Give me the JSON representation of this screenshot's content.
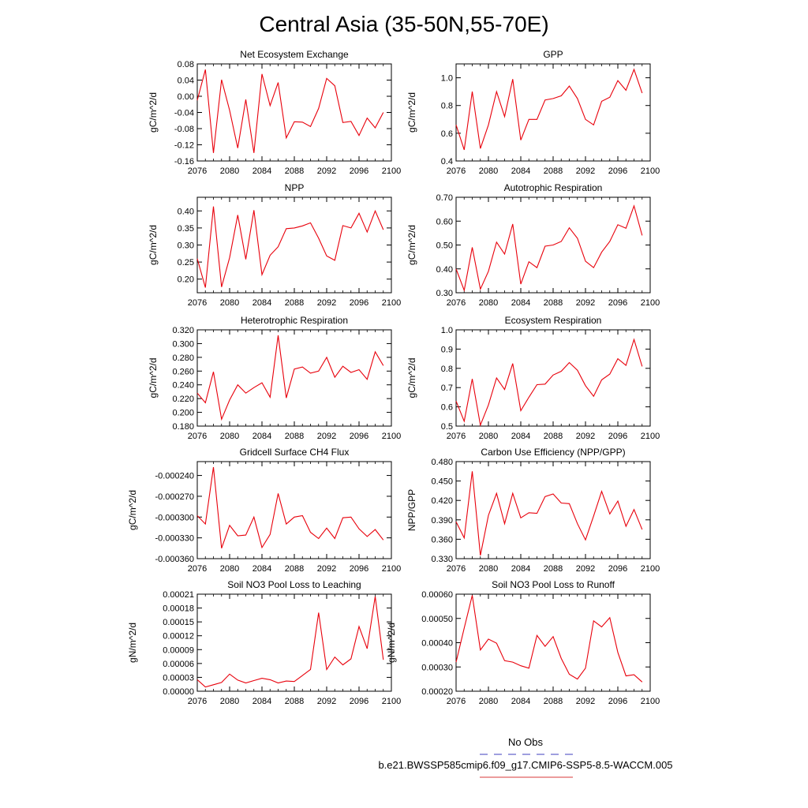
{
  "figure": {
    "title": "Central Asia (35-50N,55-70E)",
    "legend": {
      "entries": [
        {
          "label": "No Obs",
          "color": "#6666cc",
          "style": "dashed"
        },
        {
          "label": "b.e21.BWSSP585cmip6.f09_g17.CMIP6-SSP5-8.5-WACCM.005",
          "color": "#e06060",
          "style": "solid"
        }
      ]
    },
    "series_color": "#e8000b"
  },
  "chart_data": [
    {
      "type": "line",
      "title": "Net Ecosystem Exchange",
      "ylabel": "gC/m^2/d",
      "xlim": [
        2076,
        2100
      ],
      "ylim": [
        -0.16,
        0.08
      ],
      "xticks": [
        "2076",
        "2080",
        "2084",
        "2088",
        "2092",
        "2096",
        "2100"
      ],
      "yticks": [
        "-0.16",
        "-0.12",
        "-0.08",
        "-0.04",
        "0.00",
        "0.04",
        "0.08"
      ],
      "x": [
        2076,
        2077,
        2078,
        2079,
        2080,
        2081,
        2082,
        2083,
        2084,
        2085,
        2086,
        2087,
        2088,
        2089,
        2090,
        2091,
        2092,
        2093,
        2094,
        2095,
        2096,
        2097,
        2098,
        2099
      ],
      "values": [
        -0.01,
        0.066,
        -0.14,
        0.041,
        -0.035,
        -0.128,
        -0.008,
        -0.14,
        0.055,
        -0.023,
        0.034,
        -0.103,
        -0.063,
        -0.064,
        -0.075,
        -0.03,
        0.044,
        0.026,
        -0.065,
        -0.062,
        -0.097,
        -0.054,
        -0.078,
        -0.04
      ]
    },
    {
      "type": "line",
      "title": "GPP",
      "ylabel": "gC/m^2/d",
      "xlim": [
        2076,
        2100
      ],
      "ylim": [
        0.4,
        1.1
      ],
      "xticks": [
        "2076",
        "2080",
        "2084",
        "2088",
        "2092",
        "2096",
        "2100"
      ],
      "yticks": [
        "0.4",
        "0.6",
        "0.8",
        "1.0"
      ],
      "x": [
        2076,
        2077,
        2078,
        2079,
        2080,
        2081,
        2082,
        2083,
        2084,
        2085,
        2086,
        2087,
        2088,
        2089,
        2090,
        2091,
        2092,
        2093,
        2094,
        2095,
        2096,
        2097,
        2098,
        2099
      ],
      "values": [
        0.66,
        0.48,
        0.9,
        0.49,
        0.66,
        0.9,
        0.72,
        0.99,
        0.55,
        0.7,
        0.7,
        0.84,
        0.85,
        0.87,
        0.94,
        0.85,
        0.7,
        0.66,
        0.83,
        0.86,
        0.98,
        0.91,
        1.06,
        0.89
      ]
    },
    {
      "type": "line",
      "title": "NPP",
      "ylabel": "gC/m^2/d",
      "xlim": [
        2076,
        2100
      ],
      "ylim": [
        0.16,
        0.44
      ],
      "xticks": [
        "2076",
        "2080",
        "2084",
        "2088",
        "2092",
        "2096",
        "2100"
      ],
      "yticks": [
        "0.20",
        "0.25",
        "0.30",
        "0.35",
        "0.40"
      ],
      "x": [
        2076,
        2077,
        2078,
        2079,
        2080,
        2081,
        2082,
        2083,
        2084,
        2085,
        2086,
        2087,
        2088,
        2089,
        2090,
        2091,
        2092,
        2093,
        2094,
        2095,
        2096,
        2097,
        2098,
        2099
      ],
      "values": [
        0.26,
        0.175,
        0.413,
        0.177,
        0.263,
        0.388,
        0.258,
        0.402,
        0.213,
        0.27,
        0.295,
        0.348,
        0.35,
        0.356,
        0.365,
        0.32,
        0.268,
        0.255,
        0.357,
        0.35,
        0.393,
        0.338,
        0.4,
        0.345
      ]
    },
    {
      "type": "line",
      "title": "Autotrophic Respiration",
      "ylabel": "gC/m^2/d",
      "xlim": [
        2076,
        2100
      ],
      "ylim": [
        0.3,
        0.7
      ],
      "xticks": [
        "2076",
        "2080",
        "2084",
        "2088",
        "2092",
        "2096",
        "2100"
      ],
      "yticks": [
        "0.30",
        "0.40",
        "0.50",
        "0.60",
        "0.70"
      ],
      "x": [
        2076,
        2077,
        2078,
        2079,
        2080,
        2081,
        2082,
        2083,
        2084,
        2085,
        2086,
        2087,
        2088,
        2089,
        2090,
        2091,
        2092,
        2093,
        2094,
        2095,
        2096,
        2097,
        2098,
        2099
      ],
      "values": [
        0.4,
        0.31,
        0.49,
        0.315,
        0.39,
        0.512,
        0.462,
        0.588,
        0.336,
        0.43,
        0.405,
        0.495,
        0.5,
        0.515,
        0.572,
        0.528,
        0.432,
        0.405,
        0.47,
        0.515,
        0.585,
        0.57,
        0.664,
        0.54
      ]
    },
    {
      "type": "line",
      "title": "Heterotrophic Respiration",
      "ylabel": "gC/m^2/d",
      "xlim": [
        2076,
        2100
      ],
      "ylim": [
        0.18,
        0.32
      ],
      "xticks": [
        "2076",
        "2080",
        "2084",
        "2088",
        "2092",
        "2096",
        "2100"
      ],
      "yticks": [
        "0.180",
        "0.200",
        "0.220",
        "0.240",
        "0.260",
        "0.280",
        "0.300",
        "0.320"
      ],
      "x": [
        2076,
        2077,
        2078,
        2079,
        2080,
        2081,
        2082,
        2083,
        2084,
        2085,
        2086,
        2087,
        2088,
        2089,
        2090,
        2091,
        2092,
        2093,
        2094,
        2095,
        2096,
        2097,
        2098,
        2099
      ],
      "values": [
        0.228,
        0.214,
        0.259,
        0.19,
        0.218,
        0.24,
        0.228,
        0.236,
        0.243,
        0.222,
        0.312,
        0.221,
        0.263,
        0.266,
        0.257,
        0.26,
        0.28,
        0.251,
        0.267,
        0.258,
        0.262,
        0.248,
        0.288,
        0.268
      ]
    },
    {
      "type": "line",
      "title": "Ecosystem Respiration",
      "ylabel": "gC/m^2/d",
      "xlim": [
        2076,
        2100
      ],
      "ylim": [
        0.5,
        1.0
      ],
      "xticks": [
        "2076",
        "2080",
        "2084",
        "2088",
        "2092",
        "2096",
        "2100"
      ],
      "yticks": [
        "0.5",
        "0.6",
        "0.7",
        "0.8",
        "0.9",
        "1.0"
      ],
      "x": [
        2076,
        2077,
        2078,
        2079,
        2080,
        2081,
        2082,
        2083,
        2084,
        2085,
        2086,
        2087,
        2088,
        2089,
        2090,
        2091,
        2092,
        2093,
        2094,
        2095,
        2096,
        2097,
        2098,
        2099
      ],
      "values": [
        0.63,
        0.525,
        0.745,
        0.505,
        0.61,
        0.75,
        0.69,
        0.825,
        0.58,
        0.65,
        0.715,
        0.718,
        0.765,
        0.785,
        0.83,
        0.79,
        0.71,
        0.655,
        0.74,
        0.77,
        0.85,
        0.815,
        0.95,
        0.81
      ]
    },
    {
      "type": "line",
      "title": "Gridcell Surface CH4 Flux",
      "ylabel": "gC/m^2/d",
      "xlim": [
        2076,
        2100
      ],
      "ylim": [
        -0.00036,
        -0.00022
      ],
      "xticks": [
        "2076",
        "2080",
        "2084",
        "2088",
        "2092",
        "2096",
        "2100"
      ],
      "yticks": [
        "-0.000360",
        "-0.000330",
        "-0.000300",
        "-0.000270",
        "-0.000240"
      ],
      "x": [
        2076,
        2077,
        2078,
        2079,
        2080,
        2081,
        2082,
        2083,
        2084,
        2085,
        2086,
        2087,
        2088,
        2089,
        2090,
        2091,
        2092,
        2093,
        2094,
        2095,
        2096,
        2097,
        2098,
        2099
      ],
      "values": [
        -0.000298,
        -0.00031,
        -0.000228,
        -0.000345,
        -0.000312,
        -0.000327,
        -0.000326,
        -0.0003,
        -0.000344,
        -0.000325,
        -0.000266,
        -0.00031,
        -0.0003,
        -0.000298,
        -0.000322,
        -0.000331,
        -0.000316,
        -0.000331,
        -0.000301,
        -0.0003,
        -0.000317,
        -0.000328,
        -0.000318,
        -0.000333
      ]
    },
    {
      "type": "line",
      "title": "Carbon Use Efficiency (NPP/GPP)",
      "ylabel": "NPP/GPP",
      "xlim": [
        2076,
        2100
      ],
      "ylim": [
        0.33,
        0.48
      ],
      "xticks": [
        "2076",
        "2080",
        "2084",
        "2088",
        "2092",
        "2096",
        "2100"
      ],
      "yticks": [
        "0.330",
        "0.360",
        "0.390",
        "0.420",
        "0.450",
        "0.480"
      ],
      "x": [
        2076,
        2077,
        2078,
        2079,
        2080,
        2081,
        2082,
        2083,
        2084,
        2085,
        2086,
        2087,
        2088,
        2089,
        2090,
        2091,
        2092,
        2093,
        2094,
        2095,
        2096,
        2097,
        2098,
        2099
      ],
      "values": [
        0.387,
        0.362,
        0.465,
        0.335,
        0.397,
        0.431,
        0.384,
        0.431,
        0.393,
        0.401,
        0.4,
        0.426,
        0.43,
        0.416,
        0.415,
        0.384,
        0.359,
        0.396,
        0.434,
        0.399,
        0.419,
        0.38,
        0.406,
        0.375
      ]
    },
    {
      "type": "line",
      "title": "Soil NO3 Pool Loss to Leaching",
      "ylabel": "gN/m^2/d",
      "xlim": [
        2076,
        2100
      ],
      "ylim": [
        0.0,
        0.00021
      ],
      "xticks": [
        "2076",
        "2080",
        "2084",
        "2088",
        "2092",
        "2096",
        "2100"
      ],
      "yticks": [
        "0.00000",
        "0.00003",
        "0.00006",
        "0.00009",
        "0.00012",
        "0.00015",
        "0.00018",
        "0.00021"
      ],
      "x": [
        2076,
        2077,
        2078,
        2079,
        2080,
        2081,
        2082,
        2083,
        2084,
        2085,
        2086,
        2087,
        2088,
        2089,
        2090,
        2091,
        2092,
        2093,
        2094,
        2095,
        2096,
        2097,
        2098,
        2099
      ],
      "values": [
        2.5e-05,
        9e-06,
        1.4e-05,
        1.9e-05,
        3.7e-05,
        2.4e-05,
        1.8e-05,
        2.3e-05,
        2.8e-05,
        2.5e-05,
        1.8e-05,
        2.2e-05,
        2.1e-05,
        3.4e-05,
        4.7e-05,
        0.00017,
        4.7e-05,
        7.4e-05,
        5.7e-05,
        7e-05,
        0.00014,
        9.2e-05,
        0.000205,
        6.8e-05
      ]
    },
    {
      "type": "line",
      "title": "Soil NO3 Pool Loss to Runoff",
      "ylabel": "gN/m^2/d",
      "xlim": [
        2076,
        2100
      ],
      "ylim": [
        0.0002,
        0.0006
      ],
      "xticks": [
        "2076",
        "2080",
        "2084",
        "2088",
        "2092",
        "2096",
        "2100"
      ],
      "yticks": [
        "0.00020",
        "0.00030",
        "0.00040",
        "0.00050",
        "0.00060"
      ],
      "x": [
        2076,
        2077,
        2078,
        2079,
        2080,
        2081,
        2082,
        2083,
        2084,
        2085,
        2086,
        2087,
        2088,
        2089,
        2090,
        2091,
        2092,
        2093,
        2094,
        2095,
        2096,
        2097,
        2098,
        2099
      ],
      "values": [
        0.00032,
        0.00046,
        0.000595,
        0.00037,
        0.000415,
        0.000398,
        0.000326,
        0.00032,
        0.000305,
        0.000295,
        0.00043,
        0.000385,
        0.000425,
        0.000335,
        0.00027,
        0.00025,
        0.000295,
        0.00049,
        0.000465,
        0.000503,
        0.00036,
        0.000263,
        0.000268,
        0.000238
      ]
    }
  ]
}
